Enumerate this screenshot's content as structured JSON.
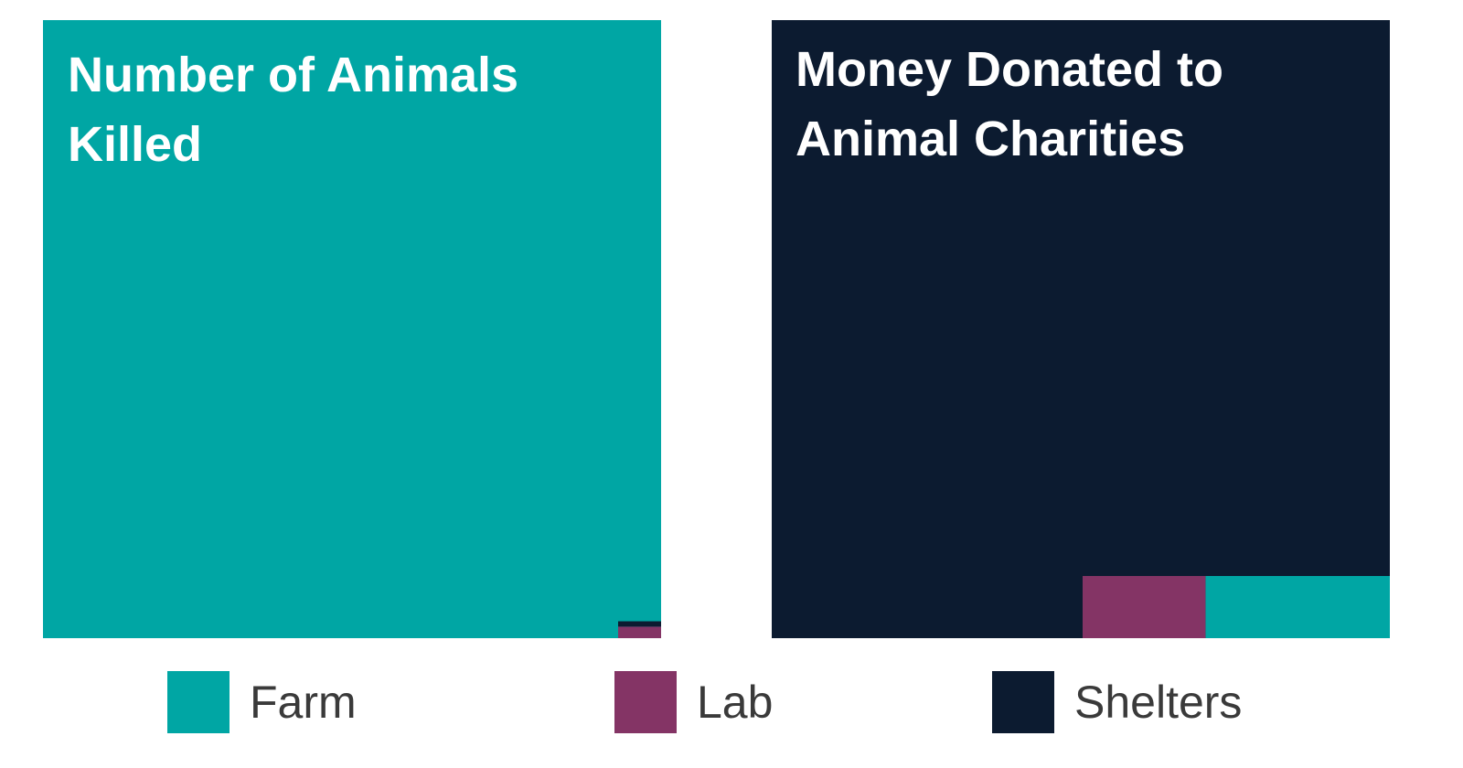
{
  "legend": {
    "items": [
      {
        "name": "Farm",
        "color": "#00a6a4"
      },
      {
        "name": "Lab",
        "color": "#843465"
      },
      {
        "name": "Shelters",
        "color": "#0c1b30"
      }
    ]
  },
  "chart_data": [
    {
      "type": "treemap",
      "title": "Number of Animals Killed",
      "values": [
        99.8,
        0.13,
        0.06
      ]
    },
    {
      "type": "treemap",
      "title": "Money Donated to Animal Charities",
      "values": [
        3.0,
        2.0,
        95.0
      ]
    }
  ]
}
